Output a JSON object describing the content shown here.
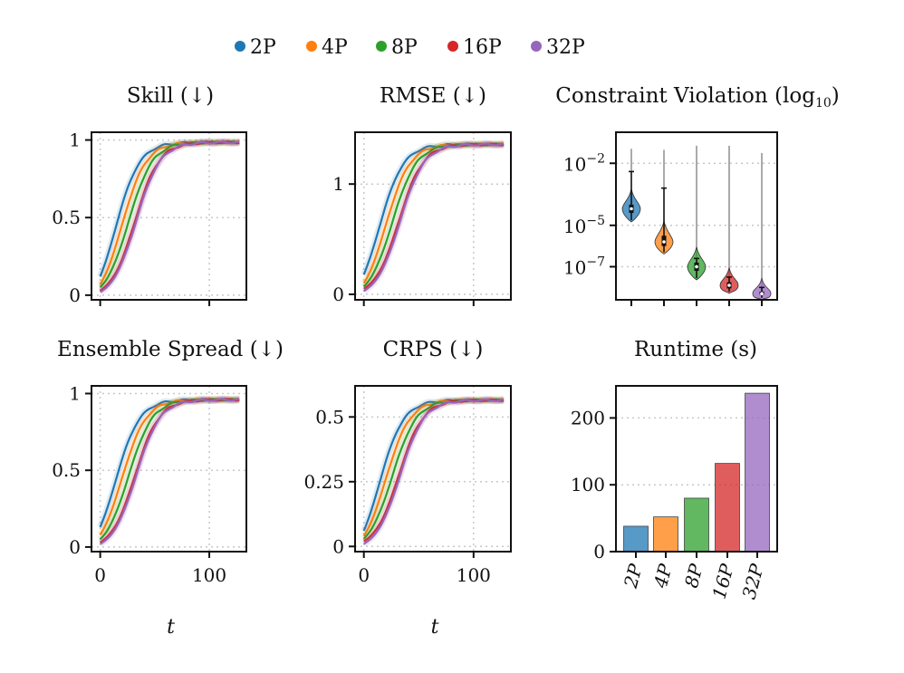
{
  "legend": [
    {
      "label": "2P",
      "color": "#1f77b4"
    },
    {
      "label": "4P",
      "color": "#ff7f0e"
    },
    {
      "label": "8P",
      "color": "#2ca02c"
    },
    {
      "label": "16P",
      "color": "#d62728"
    },
    {
      "label": "32P",
      "color": "#9467bd"
    }
  ],
  "chart_data": [
    {
      "id": "skill",
      "type": "line",
      "title": "Skill (↓)",
      "xlim": [
        -8,
        134
      ],
      "ylim": [
        -0.03,
        1.05
      ],
      "xticks": [
        0,
        100
      ],
      "yticks": [
        0,
        0.5,
        1
      ],
      "ytick_labels": [
        "0",
        "0.5",
        "1"
      ],
      "show_xticklabels": false,
      "xlabel": "",
      "final": 0.985,
      "series": [
        {
          "name": "2P",
          "x0": 14,
          "k": 11,
          "start": 0.12
        },
        {
          "name": "4P",
          "x0": 20,
          "k": 11,
          "start": 0.07
        },
        {
          "name": "8P",
          "x0": 26,
          "k": 11,
          "start": 0.05
        },
        {
          "name": "16P",
          "x0": 32,
          "k": 11,
          "start": 0.03
        },
        {
          "name": "32P",
          "x0": 33,
          "k": 11,
          "start": 0.02
        }
      ]
    },
    {
      "id": "rmse",
      "type": "line",
      "title": "RMSE (↓)",
      "xlim": [
        -8,
        134
      ],
      "ylim": [
        -0.05,
        1.47
      ],
      "xticks": [
        0,
        100
      ],
      "yticks": [
        0,
        1
      ],
      "ytick_labels": [
        "0",
        "1"
      ],
      "show_xticklabels": false,
      "xlabel": "",
      "final": 1.36,
      "series": [
        {
          "name": "2P",
          "x0": 14,
          "k": 11,
          "start": 0.18
        },
        {
          "name": "4P",
          "x0": 20,
          "k": 11,
          "start": 0.1
        },
        {
          "name": "8P",
          "x0": 26,
          "k": 11,
          "start": 0.07
        },
        {
          "name": "16P",
          "x0": 32,
          "k": 11,
          "start": 0.05
        },
        {
          "name": "32P",
          "x0": 33,
          "k": 11,
          "start": 0.03
        }
      ]
    },
    {
      "id": "spread",
      "type": "line",
      "title": "Ensemble Spread (↓)",
      "xlim": [
        -8,
        134
      ],
      "ylim": [
        -0.03,
        1.05
      ],
      "xticks": [
        0,
        100
      ],
      "yticks": [
        0,
        0.5,
        1
      ],
      "ytick_labels": [
        "0",
        "0.5",
        "1"
      ],
      "show_xticklabels": true,
      "xlabel": "t",
      "final": 0.96,
      "series": [
        {
          "name": "2P",
          "x0": 14,
          "k": 11,
          "start": 0.13
        },
        {
          "name": "4P",
          "x0": 20,
          "k": 11,
          "start": 0.08
        },
        {
          "name": "8P",
          "x0": 26,
          "k": 11,
          "start": 0.05
        },
        {
          "name": "16P",
          "x0": 32,
          "k": 11,
          "start": 0.03
        },
        {
          "name": "32P",
          "x0": 33,
          "k": 11,
          "start": 0.02
        }
      ]
    },
    {
      "id": "crps",
      "type": "line",
      "title": "CRPS (↓)",
      "xlim": [
        -8,
        134
      ],
      "ylim": [
        -0.02,
        0.62
      ],
      "xticks": [
        0,
        100
      ],
      "yticks": [
        0,
        0.25,
        0.5
      ],
      "ytick_labels": [
        "0",
        "0.25",
        "0.5"
      ],
      "show_xticklabels": true,
      "xlabel": "t",
      "final": 0.565,
      "series": [
        {
          "name": "2P",
          "x0": 14,
          "k": 11,
          "start": 0.06
        },
        {
          "name": "4P",
          "x0": 20,
          "k": 11,
          "start": 0.04
        },
        {
          "name": "8P",
          "x0": 26,
          "k": 11,
          "start": 0.03
        },
        {
          "name": "16P",
          "x0": 32,
          "k": 11,
          "start": 0.02
        },
        {
          "name": "32P",
          "x0": 33,
          "k": 11,
          "start": 0.01
        }
      ]
    },
    {
      "id": "violation",
      "type": "violin",
      "title": "Constraint Violation (log",
      "title_sub": "10",
      "title_end": ")",
      "yscale": "log10",
      "ylim_exp": [
        -8.6,
        -0.5
      ],
      "ytick_exps": [
        -2,
        -5,
        -7
      ],
      "ytick_labels": [
        {
          "base": "10",
          "exp": "−2"
        },
        {
          "base": "10",
          "exp": "−5"
        },
        {
          "base": "10",
          "exp": "−7"
        }
      ],
      "violins": [
        {
          "name": "2P",
          "median_exp": -4.2,
          "body_lo": -4.75,
          "body_hi": -3.75,
          "q1_exp": -4.4,
          "q3_exp": -4.0,
          "whisker_lo": -4.75,
          "whisker_hi": -2.4,
          "max_exp": -1.3
        },
        {
          "name": "4P",
          "median_exp": -5.8,
          "body_lo": -6.3,
          "body_hi": -5.3,
          "q1_exp": -6.0,
          "q3_exp": -5.5,
          "whisker_lo": -6.3,
          "whisker_hi": -3.2,
          "max_exp": -1.35
        },
        {
          "name": "8P",
          "median_exp": -7.0,
          "body_lo": -7.55,
          "body_hi": -6.55,
          "q1_exp": -7.2,
          "q3_exp": -6.8,
          "whisker_lo": -7.55,
          "whisker_hi": -6.6,
          "max_exp": -1.15
        },
        {
          "name": "16P",
          "median_exp": -7.9,
          "body_lo": -8.2,
          "body_hi": -7.55,
          "q1_exp": -8.05,
          "q3_exp": -7.75,
          "whisker_lo": -8.2,
          "whisker_hi": -7.5,
          "max_exp": -1.15
        },
        {
          "name": "32P",
          "median_exp": -8.3,
          "body_lo": -8.5,
          "body_hi": -8.05,
          "q1_exp": -8.35,
          "q3_exp": -8.2,
          "whisker_lo": -8.5,
          "whisker_hi": -8.0,
          "max_exp": -1.5
        }
      ]
    },
    {
      "id": "runtime",
      "type": "bar",
      "title": "Runtime (s)",
      "categories": [
        "2P",
        "4P",
        "8P",
        "16P",
        "32P"
      ],
      "values": [
        38,
        52,
        80,
        132,
        237
      ],
      "ylim": [
        0,
        248
      ],
      "yticks": [
        0,
        100,
        200
      ],
      "ytick_labels": [
        "0",
        "100",
        "200"
      ]
    }
  ]
}
